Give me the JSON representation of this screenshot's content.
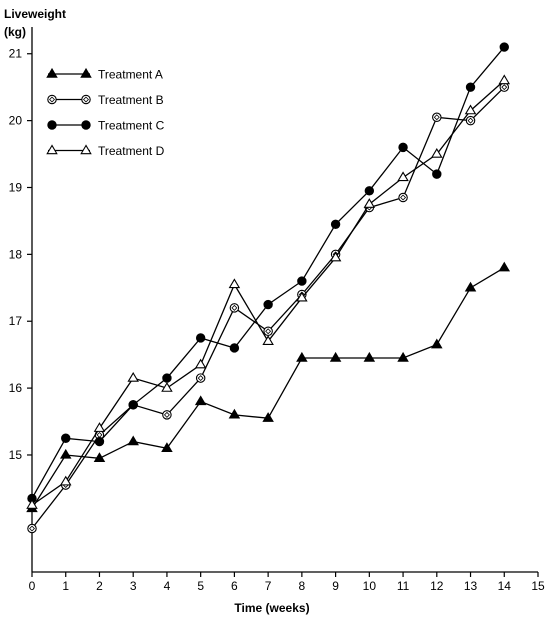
{
  "chart_data": {
    "type": "line",
    "ylabel_line1": "Liveweight",
    "ylabel_line2": "(kg)",
    "xlabel": "Time (weeks)",
    "xlim": [
      0,
      15
    ],
    "ylim": [
      13.25,
      21.4
    ],
    "xticks": [
      "0",
      "1",
      "2",
      "3",
      "4",
      "5",
      "6",
      "7",
      "8",
      "9",
      "10",
      "11",
      "12",
      "13",
      "14",
      "15"
    ],
    "yticks": [
      "15",
      "16",
      "17",
      "18",
      "19",
      "20",
      "21"
    ],
    "legend_position": "top-left",
    "grid": false,
    "series": [
      {
        "name": "Treatment  A",
        "marker": "triangle-filled",
        "x": [
          0,
          1,
          2,
          3,
          4,
          5,
          6,
          7,
          8,
          9,
          10,
          11,
          12,
          13,
          14
        ],
        "y": [
          14.2,
          15.0,
          14.95,
          15.2,
          15.1,
          15.8,
          15.6,
          15.55,
          16.45,
          16.45,
          16.45,
          16.45,
          16.65,
          17.5,
          17.8
        ]
      },
      {
        "name": "Treatment  B",
        "marker": "diamond-open",
        "x": [
          0,
          1,
          2,
          3,
          4,
          5,
          6,
          7,
          8,
          9,
          10,
          11,
          12,
          13,
          14
        ],
        "y": [
          13.9,
          14.55,
          15.3,
          15.75,
          15.6,
          16.15,
          17.2,
          16.85,
          17.4,
          18.0,
          18.7,
          18.85,
          20.05,
          20.0,
          20.5
        ]
      },
      {
        "name": "Treatment  C",
        "marker": "circle-filled",
        "x": [
          0,
          1,
          2,
          3,
          4,
          5,
          6,
          7,
          8,
          9,
          10,
          11,
          12,
          13,
          14
        ],
        "y": [
          14.35,
          15.25,
          15.2,
          15.75,
          16.15,
          16.75,
          16.6,
          17.25,
          17.6,
          18.45,
          18.95,
          19.6,
          19.2,
          20.5,
          21.1
        ]
      },
      {
        "name": "Treatment  D",
        "marker": "triangle-open",
        "x": [
          0,
          1,
          2,
          3,
          4,
          5,
          6,
          7,
          8,
          9,
          10,
          11,
          12,
          13,
          14
        ],
        "y": [
          14.25,
          14.6,
          15.4,
          16.15,
          16.0,
          16.35,
          17.55,
          16.7,
          17.35,
          17.95,
          18.75,
          19.15,
          19.5,
          20.15,
          20.6
        ]
      }
    ]
  }
}
